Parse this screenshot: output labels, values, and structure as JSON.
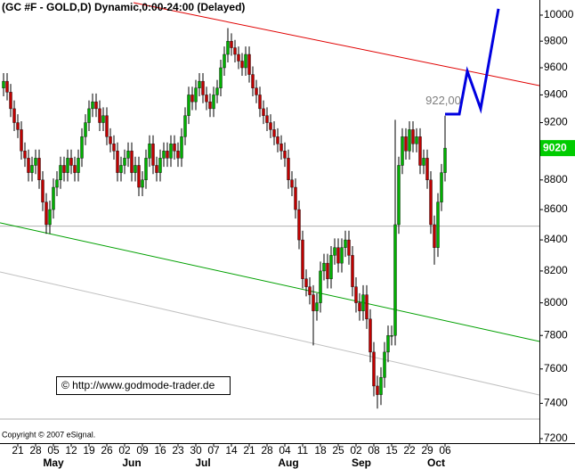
{
  "chart_data": {
    "type": "candlestick",
    "title": "(GC #F - GOLD,D) Dynamic,0:00-24:00 (Delayed)",
    "watermark": "© http://www.godmode-trader.de",
    "copyright": "Copyright © 2007 eSignal.",
    "annotation": "922,00",
    "log_scale": true,
    "up_color": "#00b000",
    "down_color": "#c00000",
    "ylim": [
      7175,
      10118
    ],
    "yticks": [
      7200,
      7400,
      7600,
      7800,
      8000,
      8200,
      8400,
      8600,
      8800,
      9000,
      9200,
      9400,
      9600,
      9800,
      10000
    ],
    "xlim": [
      -1,
      150.5
    ],
    "xticks": [
      {
        "value": 4,
        "label": "21"
      },
      {
        "value": 9,
        "label": "28"
      },
      {
        "value": 14,
        "label": "05"
      },
      {
        "value": 19,
        "label": "12"
      },
      {
        "value": 24,
        "label": "19"
      },
      {
        "value": 29,
        "label": "26"
      },
      {
        "value": 34,
        "label": "02"
      },
      {
        "value": 39,
        "label": "09"
      },
      {
        "value": 44,
        "label": "16"
      },
      {
        "value": 49,
        "label": "23"
      },
      {
        "value": 54,
        "label": "30"
      },
      {
        "value": 59,
        "label": "07"
      },
      {
        "value": 64,
        "label": "14"
      },
      {
        "value": 69,
        "label": "21"
      },
      {
        "value": 74,
        "label": "28"
      },
      {
        "value": 79,
        "label": "04"
      },
      {
        "value": 84,
        "label": "11"
      },
      {
        "value": 89,
        "label": "18"
      },
      {
        "value": 94,
        "label": "25"
      },
      {
        "value": 99,
        "label": "02"
      },
      {
        "value": 104,
        "label": "08"
      },
      {
        "value": 109,
        "label": "15"
      },
      {
        "value": 114,
        "label": "22"
      },
      {
        "value": 119,
        "label": "29"
      },
      {
        "value": 124,
        "label": "06"
      }
    ],
    "month_ticks": [
      {
        "value": 14,
        "label": "May"
      },
      {
        "value": 36,
        "label": "Jun"
      },
      {
        "value": 56,
        "label": "Jul"
      },
      {
        "value": 80,
        "label": "Aug"
      },
      {
        "value": 100.5,
        "label": "Sep"
      },
      {
        "value": 121.5,
        "label": "Oct"
      }
    ],
    "last_price": 9020,
    "last_price_color": "#00cc00",
    "hlines": [
      8490,
      7310
    ],
    "trendlines": [
      {
        "color": "#e00000",
        "x": [
          36.5,
          150.5
        ],
        "values": [
          10097,
          9468
        ]
      },
      {
        "color": "#00a000",
        "x": [
          -1,
          150.5
        ],
        "values": [
          8512,
          7764
        ]
      },
      {
        "color": "#c0c0c0",
        "x": [
          -1,
          150.5
        ],
        "values": [
          8194,
          7448
        ]
      }
    ],
    "projection": {
      "color": "#0000e0",
      "x": [
        124,
        128,
        130.25,
        134,
        139
      ],
      "values": [
        9261,
        9261,
        9574,
        9300,
        10049
      ]
    },
    "candles": [
      [
        9450,
        9560,
        9390,
        9500
      ],
      [
        9500,
        9560,
        9360,
        9420
      ],
      [
        9420,
        9480,
        9240,
        9300
      ],
      [
        9300,
        9360,
        9140,
        9200
      ],
      [
        9200,
        9260,
        9090,
        9150
      ],
      [
        9150,
        9210,
        8940,
        9000
      ],
      [
        9000,
        9060,
        8890,
        8950
      ],
      [
        8950,
        9010,
        8790,
        8850
      ],
      [
        8850,
        8960,
        8790,
        8900
      ],
      [
        8900,
        9010,
        8840,
        8950
      ],
      [
        8950,
        9010,
        8740,
        8800
      ],
      [
        8800,
        8860,
        8590,
        8650
      ],
      [
        8650,
        8710,
        8440,
        8500
      ],
      [
        8500,
        8660,
        8440,
        8600
      ],
      [
        8600,
        8810,
        8540,
        8750
      ],
      [
        8750,
        8860,
        8690,
        8800
      ],
      [
        8800,
        8960,
        8740,
        8900
      ],
      [
        8900,
        8960,
        8790,
        8850
      ],
      [
        8850,
        9010,
        8790,
        8950
      ],
      [
        8950,
        9010,
        8840,
        8900
      ],
      [
        8900,
        8960,
        8790,
        8850
      ],
      [
        8850,
        9010,
        8790,
        8950
      ],
      [
        8950,
        9160,
        8890,
        9100
      ],
      [
        9100,
        9260,
        9040,
        9200
      ],
      [
        9200,
        9360,
        9140,
        9300
      ],
      [
        9300,
        9410,
        9240,
        9350
      ],
      [
        9350,
        9410,
        9240,
        9300
      ],
      [
        9300,
        9360,
        9140,
        9200
      ],
      [
        9200,
        9310,
        9140,
        9250
      ],
      [
        9250,
        9310,
        9040,
        9100
      ],
      [
        9100,
        9160,
        8990,
        9050
      ],
      [
        9050,
        9110,
        8940,
        9000
      ],
      [
        9000,
        9060,
        8790,
        8850
      ],
      [
        8850,
        8960,
        8790,
        8900
      ],
      [
        8900,
        9010,
        8840,
        8950
      ],
      [
        8950,
        9060,
        8890,
        9000
      ],
      [
        9000,
        9060,
        8790,
        8850
      ],
      [
        8850,
        8960,
        8790,
        8900
      ],
      [
        8900,
        8960,
        8690,
        8750
      ],
      [
        8750,
        8860,
        8690,
        8800
      ],
      [
        8800,
        9010,
        8740,
        8950
      ],
      [
        8950,
        9110,
        8890,
        9050
      ],
      [
        9050,
        9110,
        8840,
        8900
      ],
      [
        8900,
        8960,
        8790,
        8850
      ],
      [
        8850,
        9010,
        8790,
        8950
      ],
      [
        8950,
        9060,
        8890,
        9000
      ],
      [
        9000,
        9060,
        8890,
        8950
      ],
      [
        8950,
        9110,
        8890,
        9050
      ],
      [
        9050,
        9110,
        8940,
        9000
      ],
      [
        9000,
        9060,
        8890,
        8950
      ],
      [
        8950,
        9160,
        8890,
        9100
      ],
      [
        9100,
        9310,
        9040,
        9250
      ],
      [
        9250,
        9460,
        9190,
        9400
      ],
      [
        9400,
        9460,
        9290,
        9350
      ],
      [
        9350,
        9510,
        9290,
        9450
      ],
      [
        9450,
        9560,
        9390,
        9500
      ],
      [
        9500,
        9560,
        9340,
        9400
      ],
      [
        9400,
        9460,
        9290,
        9350
      ],
      [
        9350,
        9410,
        9240,
        9300
      ],
      [
        9300,
        9460,
        9240,
        9400
      ],
      [
        9400,
        9510,
        9340,
        9450
      ],
      [
        9450,
        9660,
        9390,
        9600
      ],
      [
        9600,
        9760,
        9540,
        9700
      ],
      [
        9700,
        9900,
        9640,
        9800
      ],
      [
        9800,
        9860,
        9690,
        9750
      ],
      [
        9750,
        9810,
        9640,
        9700
      ],
      [
        9700,
        9760,
        9590,
        9650
      ],
      [
        9650,
        9710,
        9540,
        9600
      ],
      [
        9600,
        9760,
        9540,
        9700
      ],
      [
        9700,
        9760,
        9490,
        9550
      ],
      [
        9550,
        9610,
        9390,
        9450
      ],
      [
        9450,
        9510,
        9340,
        9400
      ],
      [
        9400,
        9460,
        9240,
        9300
      ],
      [
        9300,
        9360,
        9190,
        9250
      ],
      [
        9250,
        9310,
        9140,
        9200
      ],
      [
        9200,
        9260,
        9090,
        9150
      ],
      [
        9150,
        9210,
        9040,
        9100
      ],
      [
        9100,
        9160,
        8990,
        9050
      ],
      [
        9050,
        9110,
        8940,
        9000
      ],
      [
        9000,
        9060,
        8890,
        8950
      ],
      [
        8950,
        9010,
        8740,
        8800
      ],
      [
        8800,
        8860,
        8690,
        8750
      ],
      [
        8750,
        8810,
        8540,
        8600
      ],
      [
        8600,
        8660,
        8340,
        8400
      ],
      [
        8400,
        8460,
        8090,
        8150
      ],
      [
        8150,
        8210,
        8040,
        8100
      ],
      [
        8100,
        8160,
        7990,
        8050
      ],
      [
        8050,
        8110,
        7740,
        7950
      ],
      [
        7950,
        8060,
        7890,
        8000
      ],
      [
        8000,
        8260,
        7940,
        8200
      ],
      [
        8200,
        8310,
        8140,
        8250
      ],
      [
        8250,
        8310,
        8090,
        8150
      ],
      [
        8150,
        8360,
        8090,
        8300
      ],
      [
        8300,
        8410,
        8240,
        8350
      ],
      [
        8350,
        8410,
        8190,
        8250
      ],
      [
        8250,
        8410,
        8190,
        8350
      ],
      [
        8350,
        8460,
        8290,
        8400
      ],
      [
        8400,
        8460,
        8240,
        8300
      ],
      [
        8300,
        8360,
        8040,
        8100
      ],
      [
        8100,
        8160,
        7940,
        8000
      ],
      [
        8000,
        8060,
        7890,
        7950
      ],
      [
        7950,
        8110,
        7890,
        8050
      ],
      [
        8050,
        8110,
        7840,
        7900
      ],
      [
        7900,
        7960,
        7640,
        7700
      ],
      [
        7700,
        7760,
        7440,
        7500
      ],
      [
        7500,
        7560,
        7370,
        7450
      ],
      [
        7450,
        7610,
        7390,
        7550
      ],
      [
        7550,
        7760,
        7490,
        7700
      ],
      [
        7700,
        7860,
        7640,
        7800
      ],
      [
        7800,
        7860,
        7740,
        7800
      ],
      [
        7800,
        9220,
        7740,
        8500
      ],
      [
        8500,
        8960,
        8440,
        8900
      ],
      [
        8900,
        9160,
        8840,
        9100
      ],
      [
        9100,
        9160,
        8940,
        9000
      ],
      [
        9000,
        9210,
        8940,
        9150
      ],
      [
        9150,
        9210,
        8990,
        9050
      ],
      [
        9050,
        9160,
        8990,
        9100
      ],
      [
        9100,
        9160,
        8840,
        8900
      ],
      [
        8900,
        9010,
        8840,
        8950
      ],
      [
        8950,
        9010,
        8740,
        8800
      ],
      [
        8800,
        8860,
        8440,
        8500
      ],
      [
        8500,
        8560,
        8240,
        8350
      ],
      [
        8350,
        8710,
        8290,
        8650
      ],
      [
        8650,
        8910,
        8590,
        8850
      ],
      [
        8850,
        9250,
        8790,
        9020
      ]
    ]
  }
}
